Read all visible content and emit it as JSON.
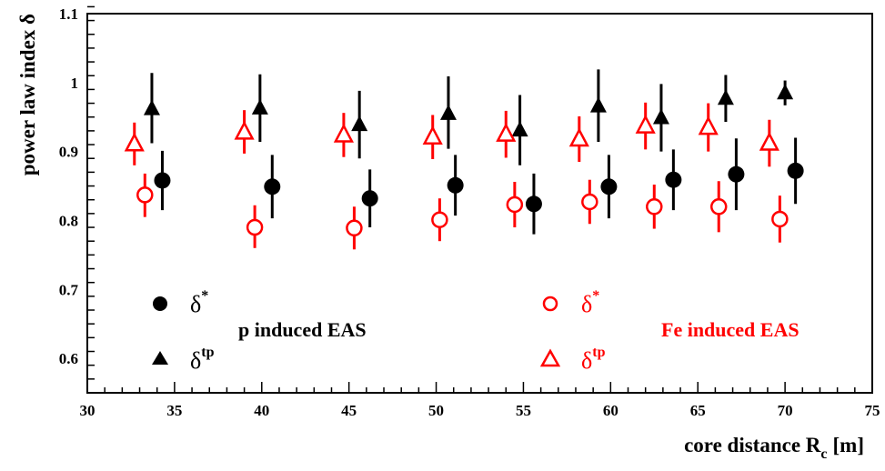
{
  "chart_data": {
    "type": "scatter",
    "xlabel": "core distance R",
    "xlabel_sub": "c",
    "xlabel_unit": "[m]",
    "ylabel": "power law index δ",
    "xlim": [
      30,
      75
    ],
    "ylim": [
      0.55,
      1.1
    ],
    "xticks": [
      "30",
      "35",
      "40",
      "45",
      "50",
      "55",
      "60",
      "65",
      "70",
      "75"
    ],
    "yticks": [
      "0.6",
      "0.7",
      "0.8",
      "0.9",
      "1",
      "1.1"
    ],
    "groups": {
      "p": {
        "label": "p induced EAS",
        "color": "#000000"
      },
      "fe": {
        "label": "Fe induced EAS",
        "color": "#ff0000"
      }
    },
    "legend": {
      "p_star": "δ",
      "p_star_sup": "*",
      "p_tp": "δ",
      "p_tp_sup": "tp",
      "fe_star": "δ",
      "fe_star_sup": "*",
      "fe_tp": "δ",
      "fe_tp_sup": "tp"
    },
    "series": [
      {
        "group": "p",
        "marker": "filled-circle",
        "legend": "δ*",
        "points": [
          {
            "x": 34.3,
            "y": 0.858,
            "lo": 0.815,
            "hi": 0.901
          },
          {
            "x": 40.6,
            "y": 0.849,
            "lo": 0.803,
            "hi": 0.895
          },
          {
            "x": 46.2,
            "y": 0.832,
            "lo": 0.79,
            "hi": 0.874
          },
          {
            "x": 51.1,
            "y": 0.851,
            "lo": 0.807,
            "hi": 0.895
          },
          {
            "x": 55.6,
            "y": 0.824,
            "lo": 0.78,
            "hi": 0.868
          },
          {
            "x": 59.9,
            "y": 0.849,
            "lo": 0.803,
            "hi": 0.895
          },
          {
            "x": 63.6,
            "y": 0.859,
            "lo": 0.815,
            "hi": 0.903
          },
          {
            "x": 67.2,
            "y": 0.867,
            "lo": 0.815,
            "hi": 0.919
          },
          {
            "x": 70.6,
            "y": 0.872,
            "lo": 0.824,
            "hi": 0.92
          }
        ]
      },
      {
        "group": "p",
        "marker": "filled-triangle",
        "legend": "δtp",
        "points": [
          {
            "x": 33.7,
            "y": 0.962,
            "lo": 0.912,
            "hi": 1.014
          },
          {
            "x": 39.9,
            "y": 0.963,
            "lo": 0.914,
            "hi": 1.012
          },
          {
            "x": 45.6,
            "y": 0.939,
            "lo": 0.89,
            "hi": 0.988
          },
          {
            "x": 50.7,
            "y": 0.955,
            "lo": 0.904,
            "hi": 1.009
          },
          {
            "x": 54.8,
            "y": 0.931,
            "lo": 0.88,
            "hi": 0.982
          },
          {
            "x": 59.3,
            "y": 0.966,
            "lo": 0.914,
            "hi": 1.019
          },
          {
            "x": 62.9,
            "y": 0.949,
            "lo": 0.9,
            "hi": 0.998
          },
          {
            "x": 66.6,
            "y": 0.977,
            "lo": 0.943,
            "hi": 1.011
          },
          {
            "x": 70.0,
            "y": 0.985,
            "lo": 0.967,
            "hi": 1.003
          }
        ]
      },
      {
        "group": "fe",
        "marker": "open-circle",
        "legend": "δ*",
        "points": [
          {
            "x": 33.3,
            "y": 0.837,
            "lo": 0.805,
            "hi": 0.868
          },
          {
            "x": 39.6,
            "y": 0.79,
            "lo": 0.76,
            "hi": 0.822
          },
          {
            "x": 45.3,
            "y": 0.789,
            "lo": 0.758,
            "hi": 0.82
          },
          {
            "x": 50.2,
            "y": 0.801,
            "lo": 0.77,
            "hi": 0.832
          },
          {
            "x": 54.5,
            "y": 0.823,
            "lo": 0.79,
            "hi": 0.856
          },
          {
            "x": 58.8,
            "y": 0.827,
            "lo": 0.795,
            "hi": 0.859
          },
          {
            "x": 62.5,
            "y": 0.82,
            "lo": 0.788,
            "hi": 0.852
          },
          {
            "x": 66.2,
            "y": 0.82,
            "lo": 0.783,
            "hi": 0.857
          },
          {
            "x": 69.7,
            "y": 0.802,
            "lo": 0.768,
            "hi": 0.836
          }
        ]
      },
      {
        "group": "fe",
        "marker": "open-triangle",
        "legend": "δtp",
        "points": [
          {
            "x": 32.7,
            "y": 0.911,
            "lo": 0.88,
            "hi": 0.942
          },
          {
            "x": 39.0,
            "y": 0.928,
            "lo": 0.897,
            "hi": 0.96
          },
          {
            "x": 44.7,
            "y": 0.924,
            "lo": 0.892,
            "hi": 0.956
          },
          {
            "x": 49.8,
            "y": 0.921,
            "lo": 0.889,
            "hi": 0.953
          },
          {
            "x": 54.0,
            "y": 0.925,
            "lo": 0.891,
            "hi": 0.959
          },
          {
            "x": 58.2,
            "y": 0.918,
            "lo": 0.885,
            "hi": 0.951
          },
          {
            "x": 62.0,
            "y": 0.937,
            "lo": 0.903,
            "hi": 0.971
          },
          {
            "x": 65.6,
            "y": 0.935,
            "lo": 0.9,
            "hi": 0.97
          },
          {
            "x": 69.1,
            "y": 0.912,
            "lo": 0.878,
            "hi": 0.946
          }
        ]
      }
    ]
  }
}
